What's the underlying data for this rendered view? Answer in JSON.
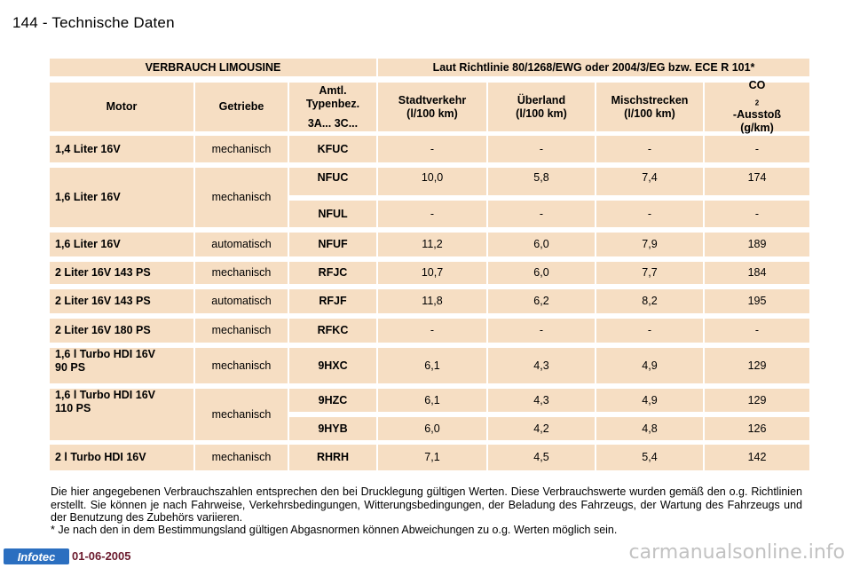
{
  "page": {
    "number": "144",
    "separator": "-",
    "title": "Technische Daten"
  },
  "table": {
    "group_header": {
      "left": "VERBRAUCH LIMOUSINE",
      "right": "Laut Richtlinie 80/1268/EWG oder 2004/3/EG bzw. ECE R 101*"
    },
    "headers": {
      "motor": "Motor",
      "getriebe": "Getriebe",
      "typ_line1": "Amtl.",
      "typ_line2": "Typenbez.",
      "typ_code": "3A... 3C...",
      "stadt_line1": "Stadtverkehr",
      "stadt_line2": "(l/100 km)",
      "ueberland_line1": "Überland",
      "ueberland_line2": "(l/100 km)",
      "misch_line1": "Mischstrecken",
      "misch_line2": "(l/100 km)",
      "co2_prefix": "CO",
      "co2_sub": "2",
      "co2_suffix": "-Ausstoß",
      "co2_unit": "(g/km)"
    },
    "rows": [
      {
        "motor": "1,4 Liter 16V",
        "getriebe": "mechanisch",
        "typ": "KFUC",
        "stadt": "-",
        "ueberland": "-",
        "misch": "-",
        "co2": "-"
      },
      {
        "motor": "1,6 Liter 16V",
        "getriebe": "mechanisch",
        "typ": "NFUC",
        "stadt": "10,0",
        "ueberland": "5,8",
        "misch": "7,4",
        "co2": "174"
      },
      {
        "typ": "NFUL",
        "stadt": "-",
        "ueberland": "-",
        "misch": "-",
        "co2": "-"
      },
      {
        "motor": "1,6 Liter 16V",
        "getriebe": "automatisch",
        "typ": "NFUF",
        "stadt": "11,2",
        "ueberland": "6,0",
        "misch": "7,9",
        "co2": "189"
      },
      {
        "motor": "2 Liter 16V 143 PS",
        "getriebe": "mechanisch",
        "typ": "RFJC",
        "stadt": "10,7",
        "ueberland": "6,0",
        "misch": "7,7",
        "co2": "184"
      },
      {
        "motor": "2 Liter 16V 143 PS",
        "getriebe": "automatisch",
        "typ": "RFJF",
        "stadt": "11,8",
        "ueberland": "6,2",
        "misch": "8,2",
        "co2": "195"
      },
      {
        "motor": "2 Liter 16V 180 PS",
        "getriebe": "mechanisch",
        "typ": "RFKC",
        "stadt": "-",
        "ueberland": "-",
        "misch": "-",
        "co2": "-"
      },
      {
        "motor_line1": "1,6 l Turbo HDI 16V",
        "motor_line2": "90 PS",
        "getriebe": "mechanisch",
        "typ": "9HXC",
        "stadt": "6,1",
        "ueberland": "4,3",
        "misch": "4,9",
        "co2": "129"
      },
      {
        "motor_line1": "1,6 l Turbo HDI 16V",
        "motor_line2": "110 PS",
        "getriebe": "mechanisch",
        "typ": "9HZC",
        "stadt": "6,1",
        "ueberland": "4,3",
        "misch": "4,9",
        "co2": "129"
      },
      {
        "typ": "9HYB",
        "stadt": "6,0",
        "ueberland": "4,2",
        "misch": "4,8",
        "co2": "126"
      },
      {
        "motor": "2 l Turbo HDI 16V",
        "getriebe": "mechanisch",
        "typ": "RHRH",
        "stadt": "7,1",
        "ueberland": "4,5",
        "misch": "5,4",
        "co2": "142"
      }
    ]
  },
  "footer": {
    "paragraph": "Die hier angegebenen Verbrauchszahlen entsprechen den bei Drucklegung gültigen Werten. Diese Verbrauchswerte wurden gemäß den o.g. Richtlinien erstellt. Sie können je nach Fahrweise, Verkehrsbedingungen, Witterungsbedingungen, der Beladung des Fahrzeugs, der Wartung des Fahrzeugs und der Benutzung des Zubehörs variieren.",
    "footnote": "* Je nach den in dem Bestimmungsland gültigen Abgasnormen können Abweichungen zu o.g. Werten möglich sein."
  },
  "brand": {
    "logo": "Infotec",
    "date": "01-06-2005"
  },
  "watermark": "carmanualsonline.info",
  "colors": {
    "cell_background": "#f6dec3",
    "logo_background": "#2b6fc0",
    "date_color": "#6b1a2d"
  }
}
